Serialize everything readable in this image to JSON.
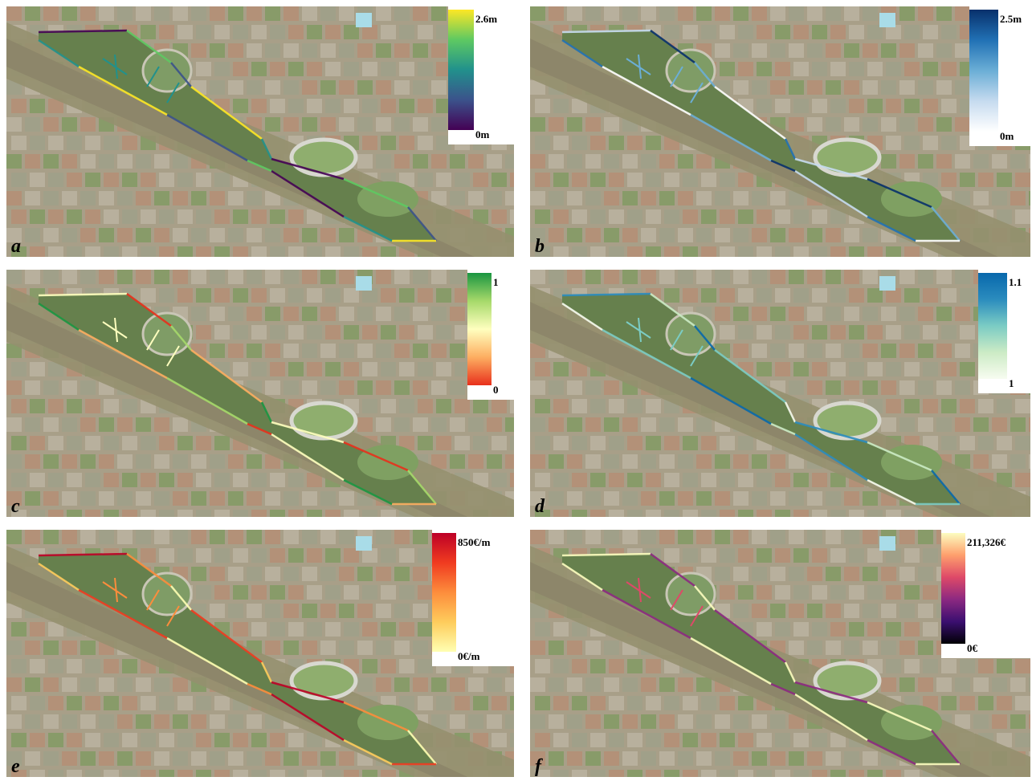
{
  "panels": [
    {
      "label": "a",
      "colorbar": {
        "max": "2.6m",
        "min": "0m",
        "colors": [
          "#440154",
          "#3b528b",
          "#21918c",
          "#5ec962",
          "#fde725"
        ]
      }
    },
    {
      "label": "b",
      "colorbar": {
        "max": "2.5m",
        "min": "0m",
        "colors": [
          "#ffffff",
          "#c6dbef",
          "#6baed6",
          "#2171b5",
          "#08306b"
        ]
      }
    },
    {
      "label": "c",
      "colorbar": {
        "max": "1",
        "min": "0",
        "colors": [
          "#e8301c",
          "#fdae61",
          "#ffffbf",
          "#a6d96a",
          "#1a9641"
        ]
      }
    },
    {
      "label": "d",
      "colorbar": {
        "max": "1.1",
        "min": "1",
        "colors": [
          "#f7fcf0",
          "#ccebc5",
          "#7bccc4",
          "#2b8cbe",
          "#0868ac"
        ]
      }
    },
    {
      "label": "e",
      "colorbar": {
        "max": "850€/m",
        "min": "0€/m",
        "colors": [
          "#ffffb2",
          "#fecc5c",
          "#fd8d3c",
          "#f03b20",
          "#bd0026"
        ]
      }
    },
    {
      "label": "f",
      "colorbar": {
        "max": "211,326€",
        "min": "0€",
        "colors": [
          "#000004",
          "#3b0f70",
          "#8c2981",
          "#de4968",
          "#fe9f6d",
          "#fcfdbf"
        ]
      }
    }
  ]
}
